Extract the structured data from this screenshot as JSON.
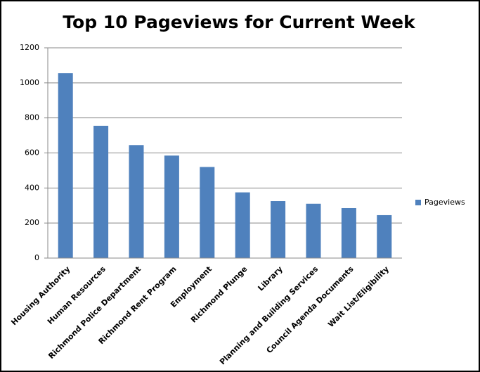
{
  "chart_data": {
    "type": "bar",
    "title": "Top 10 Pageviews for Current Week",
    "categories": [
      "Housing Authority",
      "Human Resources",
      "Richmond Police Department",
      "Richmond Rent Program",
      "Employment",
      "Richmond Plunge",
      "Library",
      "Planning and Building Services",
      "Council Agenda Documents",
      "Wait List/Eligibility"
    ],
    "series": [
      {
        "name": "Pageviews",
        "color": "#4f81bd",
        "values": [
          1055,
          755,
          645,
          585,
          520,
          375,
          325,
          310,
          285,
          245
        ]
      }
    ],
    "ylim": [
      0,
      1200
    ],
    "yticks": [
      0,
      200,
      400,
      600,
      800,
      1000,
      1200
    ],
    "grid": true,
    "legend": "right"
  }
}
